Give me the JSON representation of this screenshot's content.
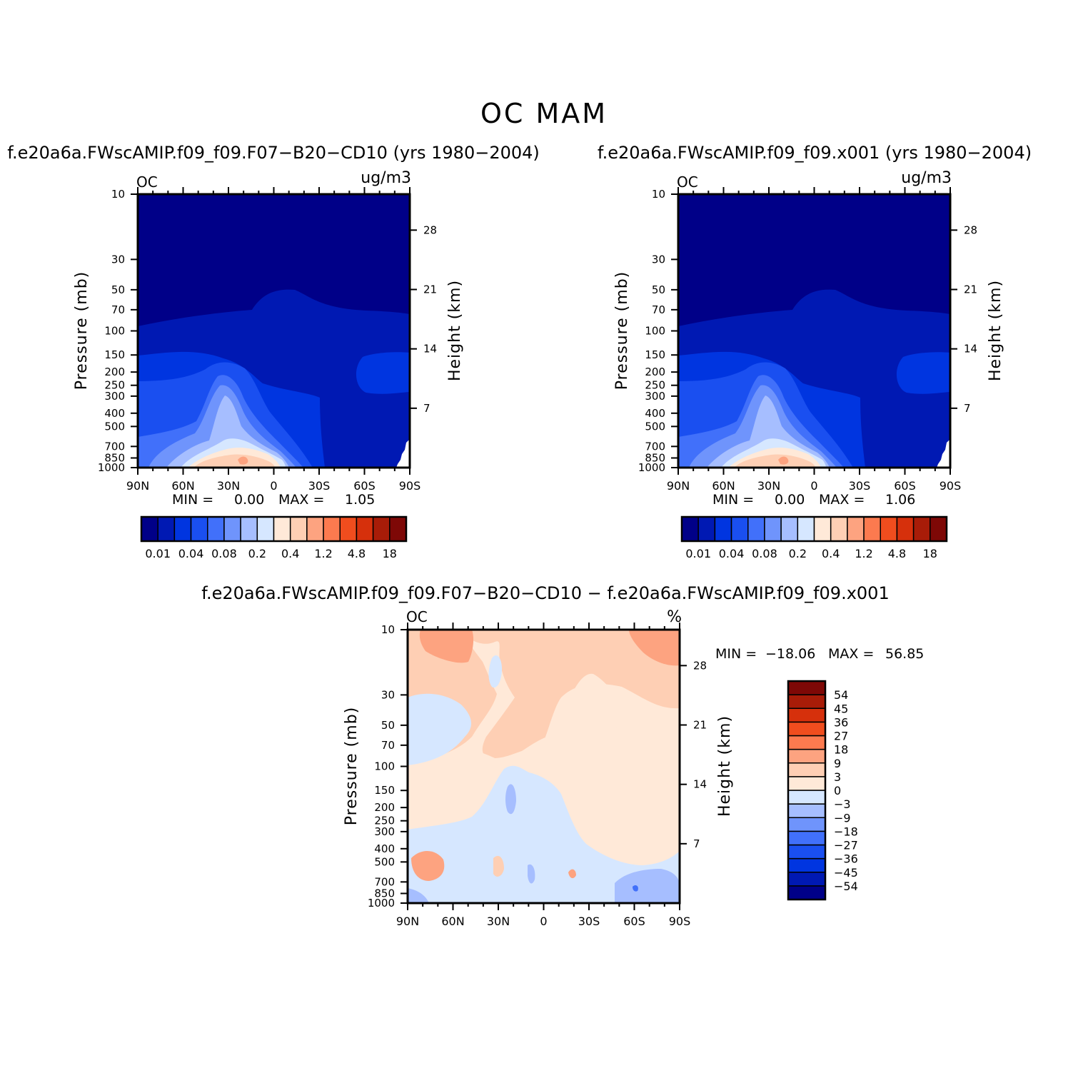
{
  "figure": {
    "main_title": "OC MAM"
  },
  "chart_data": [
    {
      "type": "heatmap",
      "title": "f.e20a6a.FWscAMIP.f09_f09.F07-B20-CD10 (yrs 1980-2004)",
      "left_label": "OC",
      "units": "ug/m3",
      "ylabel": "Pressure (mb)",
      "ylabel_right": "Height (km)",
      "x_ticks": [
        "90N",
        "60N",
        "30N",
        "0",
        "30S",
        "60S",
        "90S"
      ],
      "x_values": [
        90,
        60,
        30,
        0,
        -30,
        -60,
        -90
      ],
      "pressure_ticks": [
        "10",
        "30",
        "50",
        "70",
        "100",
        "150",
        "200",
        "250",
        "300",
        "400",
        "500",
        "700",
        "850",
        "1000"
      ],
      "pressure_values": [
        10,
        30,
        50,
        70,
        100,
        150,
        200,
        250,
        300,
        400,
        500,
        700,
        850,
        1000
      ],
      "height_ticks": [
        "28",
        "21",
        "14",
        "7"
      ],
      "height_values": [
        28,
        21,
        14,
        7
      ],
      "stats_min_label": "MIN =",
      "stats_min": "0.00",
      "stats_max_label": "MAX =",
      "stats_max": "1.05",
      "colorbar_labels": [
        "0.01",
        "0.04",
        "0.08",
        "0.2",
        "0.4",
        "1.2",
        "4.8",
        "18"
      ],
      "levels": [
        0.01,
        0.02,
        0.04,
        0.06,
        0.08,
        0.1,
        0.2,
        0.3,
        0.4,
        0.8,
        1.2,
        2.4,
        4.8,
        9,
        18
      ],
      "colors": [
        "#000088",
        "#0019b3",
        "#0035e0",
        "#1a4ff0",
        "#4170fa",
        "#6f94fc",
        "#a6beff",
        "#d6e7ff",
        "#ffe9d8",
        "#fecfb4",
        "#fda380",
        "#fc7a4f",
        "#f04d1e",
        "#d6300c",
        "#a81c08",
        "#7e0806"
      ]
    },
    {
      "type": "heatmap",
      "title": "f.e20a6a.FWscAMIP.f09_f09.x001 (yrs 1980-2004)",
      "left_label": "OC",
      "units": "ug/m3",
      "ylabel": "Pressure (mb)",
      "ylabel_right": "Height (km)",
      "x_ticks": [
        "90N",
        "60N",
        "30N",
        "0",
        "30S",
        "60S",
        "90S"
      ],
      "x_values": [
        90,
        60,
        30,
        0,
        -30,
        -60,
        -90
      ],
      "pressure_ticks": [
        "10",
        "30",
        "50",
        "70",
        "100",
        "150",
        "200",
        "250",
        "300",
        "400",
        "500",
        "700",
        "850",
        "1000"
      ],
      "pressure_values": [
        10,
        30,
        50,
        70,
        100,
        150,
        200,
        250,
        300,
        400,
        500,
        700,
        850,
        1000
      ],
      "height_ticks": [
        "28",
        "21",
        "14",
        "7"
      ],
      "height_values": [
        28,
        21,
        14,
        7
      ],
      "stats_min_label": "MIN =",
      "stats_min": "0.00",
      "stats_max_label": "MAX =",
      "stats_max": "1.06",
      "colorbar_labels": [
        "0.01",
        "0.04",
        "0.08",
        "0.2",
        "0.4",
        "1.2",
        "4.8",
        "18"
      ],
      "levels": [
        0.01,
        0.02,
        0.04,
        0.06,
        0.08,
        0.1,
        0.2,
        0.3,
        0.4,
        0.8,
        1.2,
        2.4,
        4.8,
        9,
        18
      ],
      "colors": [
        "#000088",
        "#0019b3",
        "#0035e0",
        "#1a4ff0",
        "#4170fa",
        "#6f94fc",
        "#a6beff",
        "#d6e7ff",
        "#ffe9d8",
        "#fecfb4",
        "#fda380",
        "#fc7a4f",
        "#f04d1e",
        "#d6300c",
        "#a81c08",
        "#7e0806"
      ]
    },
    {
      "type": "heatmap",
      "title": "f.e20a6a.FWscAMIP.f09_f09.F07-B20-CD10 - f.e20a6a.FWscAMIP.f09_f09.x001",
      "left_label": "OC",
      "units": "%",
      "ylabel": "Pressure (mb)",
      "ylabel_right": "Height (km)",
      "x_ticks": [
        "90N",
        "60N",
        "30N",
        "0",
        "30S",
        "60S",
        "90S"
      ],
      "x_values": [
        90,
        60,
        30,
        0,
        -30,
        -60,
        -90
      ],
      "pressure_ticks": [
        "10",
        "30",
        "50",
        "70",
        "100",
        "150",
        "200",
        "250",
        "300",
        "400",
        "500",
        "700",
        "850",
        "1000"
      ],
      "pressure_values": [
        10,
        30,
        50,
        70,
        100,
        150,
        200,
        250,
        300,
        400,
        500,
        700,
        850,
        1000
      ],
      "height_ticks": [
        "28",
        "21",
        "14",
        "7"
      ],
      "height_values": [
        28,
        21,
        14,
        7
      ],
      "stats_min_label": "MIN =",
      "stats_min": "-18.06",
      "stats_max_label": "MAX =",
      "stats_max": "56.85",
      "colorbar_labels": [
        "54",
        "45",
        "36",
        "27",
        "18",
        "9",
        "3",
        "0",
        "-3",
        "-9",
        "-18",
        "-27",
        "-36",
        "-45",
        "-54"
      ],
      "levels": [
        -54,
        -45,
        -36,
        -27,
        -18,
        -9,
        -3,
        0,
        3,
        9,
        18,
        27,
        36,
        45,
        54
      ],
      "colors": [
        "#000088",
        "#0019b3",
        "#0035e0",
        "#1a4ff0",
        "#4170fa",
        "#6f94fc",
        "#a6beff",
        "#d6e7ff",
        "#ffe9d8",
        "#fecfb4",
        "#fda380",
        "#fc7a4f",
        "#f04d1e",
        "#d6300c",
        "#a81c08",
        "#7e0806"
      ]
    }
  ]
}
